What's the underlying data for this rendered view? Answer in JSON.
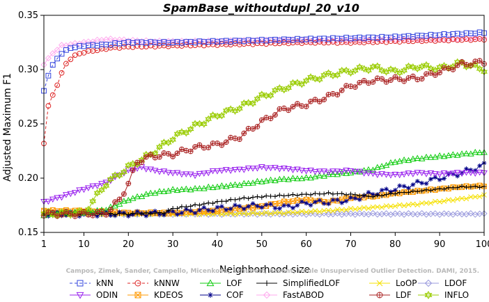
{
  "chart_data": {
    "type": "line",
    "title": "SpamBase_withoutdupl_20_v10",
    "xlabel": "Neighborhood size",
    "ylabel": "Adjusted Maximum F1",
    "xlim": [
      1,
      100
    ],
    "ylim": [
      0.15,
      0.35
    ],
    "xticks": [
      1,
      10,
      20,
      30,
      40,
      50,
      60,
      70,
      80,
      90,
      100
    ],
    "yticks": [
      0.15,
      0.2,
      0.25,
      0.3,
      0.35
    ],
    "grid": false,
    "legend_position": "bottom",
    "watermark": "Campos, Zimek, Sander, Campello, Micenkova, Schubert, Assent, Houle Unsupervised Outlier Detection. DAMI, 2015.",
    "series": [
      {
        "name": "kNN",
        "color": "#3344dd",
        "marker": "square",
        "dash": "4,3",
        "points": [
          [
            1,
            0.28
          ],
          [
            2,
            0.295
          ],
          [
            3,
            0.304
          ],
          [
            4,
            0.31
          ],
          [
            5,
            0.315
          ],
          [
            7,
            0.32
          ],
          [
            10,
            0.322
          ],
          [
            15,
            0.323
          ],
          [
            20,
            0.325
          ],
          [
            25,
            0.325
          ],
          [
            30,
            0.325
          ],
          [
            40,
            0.326
          ],
          [
            50,
            0.327
          ],
          [
            60,
            0.328
          ],
          [
            70,
            0.329
          ],
          [
            80,
            0.33
          ],
          [
            90,
            0.332
          ],
          [
            95,
            0.333
          ],
          [
            100,
            0.334
          ]
        ]
      },
      {
        "name": "kNNW",
        "color": "#dd2222",
        "marker": "circle",
        "dash": "4,3",
        "points": [
          [
            1,
            0.232
          ],
          [
            2,
            0.267
          ],
          [
            3,
            0.276
          ],
          [
            4,
            0.286
          ],
          [
            5,
            0.297
          ],
          [
            6,
            0.305
          ],
          [
            7,
            0.31
          ],
          [
            8,
            0.313
          ],
          [
            10,
            0.316
          ],
          [
            13,
            0.318
          ],
          [
            16,
            0.32
          ],
          [
            20,
            0.321
          ],
          [
            30,
            0.322
          ],
          [
            40,
            0.323
          ],
          [
            50,
            0.324
          ],
          [
            60,
            0.325
          ],
          [
            70,
            0.325
          ],
          [
            80,
            0.326
          ],
          [
            90,
            0.327
          ],
          [
            100,
            0.328
          ]
        ]
      },
      {
        "name": "LOF",
        "color": "#11cc11",
        "marker": "triangle",
        "dash": "",
        "points": [
          [
            1,
            0.166
          ],
          [
            5,
            0.168
          ],
          [
            10,
            0.168
          ],
          [
            15,
            0.171
          ],
          [
            20,
            0.18
          ],
          [
            25,
            0.186
          ],
          [
            30,
            0.189
          ],
          [
            35,
            0.19
          ],
          [
            40,
            0.192
          ],
          [
            45,
            0.194
          ],
          [
            50,
            0.197
          ],
          [
            55,
            0.199
          ],
          [
            60,
            0.2
          ],
          [
            65,
            0.203
          ],
          [
            70,
            0.205
          ],
          [
            75,
            0.208
          ],
          [
            80,
            0.215
          ],
          [
            85,
            0.218
          ],
          [
            90,
            0.22
          ],
          [
            95,
            0.222
          ],
          [
            100,
            0.224
          ]
        ]
      },
      {
        "name": "SimplifiedLOF",
        "color": "#000000",
        "marker": "plus",
        "dash": "",
        "points": [
          [
            1,
            0.167
          ],
          [
            10,
            0.167
          ],
          [
            20,
            0.167
          ],
          [
            28,
            0.168
          ],
          [
            30,
            0.172
          ],
          [
            35,
            0.175
          ],
          [
            40,
            0.178
          ],
          [
            45,
            0.181
          ],
          [
            50,
            0.183
          ],
          [
            55,
            0.184
          ],
          [
            60,
            0.185
          ],
          [
            65,
            0.186
          ],
          [
            70,
            0.185
          ],
          [
            75,
            0.183
          ],
          [
            80,
            0.186
          ],
          [
            85,
            0.188
          ],
          [
            90,
            0.19
          ],
          [
            95,
            0.192
          ],
          [
            100,
            0.192
          ]
        ]
      },
      {
        "name": "LoOP",
        "color": "#f5e000",
        "marker": "x",
        "dash": "",
        "points": [
          [
            1,
            0.167
          ],
          [
            20,
            0.167
          ],
          [
            40,
            0.167
          ],
          [
            55,
            0.168
          ],
          [
            65,
            0.17
          ],
          [
            75,
            0.173
          ],
          [
            85,
            0.176
          ],
          [
            95,
            0.181
          ],
          [
            100,
            0.184
          ]
        ]
      },
      {
        "name": "LDOF",
        "color": "#9999dd",
        "marker": "diamond",
        "dash": "",
        "points": [
          [
            1,
            0.167
          ],
          [
            20,
            0.167
          ],
          [
            40,
            0.167
          ],
          [
            60,
            0.167
          ],
          [
            80,
            0.167
          ],
          [
            100,
            0.167
          ]
        ]
      },
      {
        "name": "ODIN",
        "color": "#9922ee",
        "marker": "triangle-down",
        "dash": "",
        "points": [
          [
            1,
            0.178
          ],
          [
            5,
            0.183
          ],
          [
            10,
            0.19
          ],
          [
            15,
            0.196
          ],
          [
            18,
            0.203
          ],
          [
            20,
            0.207
          ],
          [
            23,
            0.21
          ],
          [
            26,
            0.207
          ],
          [
            30,
            0.205
          ],
          [
            35,
            0.203
          ],
          [
            40,
            0.207
          ],
          [
            45,
            0.208
          ],
          [
            50,
            0.21
          ],
          [
            55,
            0.209
          ],
          [
            60,
            0.207
          ],
          [
            65,
            0.206
          ],
          [
            70,
            0.207
          ],
          [
            75,
            0.204
          ],
          [
            80,
            0.203
          ],
          [
            85,
            0.205
          ],
          [
            90,
            0.204
          ],
          [
            95,
            0.205
          ],
          [
            100,
            0.205
          ]
        ]
      },
      {
        "name": "KDEOS",
        "color": "#ff9900",
        "marker": "square-x",
        "dash": "",
        "points": [
          [
            1,
            0.17
          ],
          [
            10,
            0.17
          ],
          [
            20,
            0.168
          ],
          [
            30,
            0.168
          ],
          [
            40,
            0.17
          ],
          [
            50,
            0.174
          ],
          [
            55,
            0.178
          ],
          [
            60,
            0.18
          ],
          [
            65,
            0.178
          ],
          [
            70,
            0.182
          ],
          [
            75,
            0.183
          ],
          [
            80,
            0.186
          ],
          [
            85,
            0.188
          ],
          [
            90,
            0.19
          ],
          [
            95,
            0.192
          ],
          [
            100,
            0.193
          ]
        ]
      },
      {
        "name": "COF",
        "color": "#000088",
        "marker": "asterisk",
        "dash": "",
        "points": [
          [
            1,
            0.167
          ],
          [
            20,
            0.167
          ],
          [
            30,
            0.168
          ],
          [
            40,
            0.172
          ],
          [
            50,
            0.175
          ],
          [
            55,
            0.173
          ],
          [
            60,
            0.177
          ],
          [
            65,
            0.178
          ],
          [
            70,
            0.18
          ],
          [
            75,
            0.186
          ],
          [
            80,
            0.19
          ],
          [
            85,
            0.195
          ],
          [
            90,
            0.2
          ],
          [
            95,
            0.205
          ],
          [
            100,
            0.212
          ]
        ]
      },
      {
        "name": "FastABOD",
        "color": "#ffaaee",
        "marker": "diamond",
        "dash": "",
        "points": [
          [
            1,
            0.305
          ],
          [
            3,
            0.315
          ],
          [
            5,
            0.322
          ],
          [
            10,
            0.325
          ],
          [
            15,
            0.328
          ],
          [
            20,
            0.327
          ],
          [
            25,
            0.326
          ],
          [
            30,
            0.326
          ],
          [
            40,
            0.326
          ],
          [
            50,
            0.327
          ],
          [
            60,
            0.327
          ],
          [
            70,
            0.327
          ],
          [
            80,
            0.328
          ],
          [
            90,
            0.328
          ],
          [
            100,
            0.329
          ]
        ]
      },
      {
        "name": "LDF",
        "color": "#aa2222",
        "marker": "circle-plus",
        "dash": "",
        "points": [
          [
            1,
            0.167
          ],
          [
            10,
            0.167
          ],
          [
            15,
            0.168
          ],
          [
            18,
            0.18
          ],
          [
            20,
            0.195
          ],
          [
            22,
            0.215
          ],
          [
            25,
            0.22
          ],
          [
            30,
            0.222
          ],
          [
            35,
            0.228
          ],
          [
            40,
            0.231
          ],
          [
            45,
            0.238
          ],
          [
            50,
            0.252
          ],
          [
            55,
            0.264
          ],
          [
            60,
            0.268
          ],
          [
            65,
            0.275
          ],
          [
            70,
            0.285
          ],
          [
            75,
            0.29
          ],
          [
            80,
            0.291
          ],
          [
            85,
            0.292
          ],
          [
            90,
            0.298
          ],
          [
            95,
            0.305
          ],
          [
            100,
            0.307
          ]
        ]
      },
      {
        "name": "INFLO",
        "color": "#99cc00",
        "marker": "hex",
        "dash": "",
        "points": [
          [
            1,
            0.167
          ],
          [
            10,
            0.168
          ],
          [
            15,
            0.195
          ],
          [
            20,
            0.21
          ],
          [
            25,
            0.222
          ],
          [
            30,
            0.237
          ],
          [
            35,
            0.248
          ],
          [
            40,
            0.258
          ],
          [
            45,
            0.265
          ],
          [
            50,
            0.275
          ],
          [
            55,
            0.283
          ],
          [
            60,
            0.29
          ],
          [
            65,
            0.295
          ],
          [
            70,
            0.299
          ],
          [
            75,
            0.302
          ],
          [
            80,
            0.298
          ],
          [
            85,
            0.303
          ],
          [
            90,
            0.301
          ],
          [
            95,
            0.306
          ],
          [
            100,
            0.3
          ]
        ]
      }
    ]
  }
}
